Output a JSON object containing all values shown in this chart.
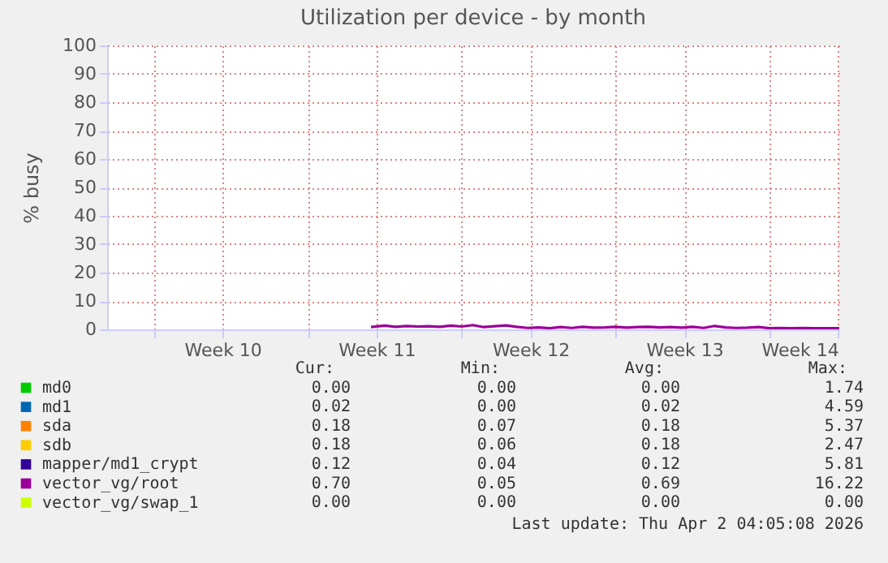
{
  "chart_data": {
    "type": "line",
    "title": "Utilization per device - by month",
    "ylabel": "% busy",
    "xlim": [
      "2026-02-27T21:00",
      "2026-04-02T04:05"
    ],
    "xticks": [
      {
        "value": "2026-03-02",
        "label": null
      },
      {
        "value": "2026-03-05T03:00",
        "label": "Week 10"
      },
      {
        "value": "2026-03-09",
        "label": null
      },
      {
        "value": "2026-03-12T03:00",
        "label": "Week 11"
      },
      {
        "value": "2026-03-16",
        "label": null
      },
      {
        "value": "2026-03-19T03:00",
        "label": "Week 12"
      },
      {
        "value": "2026-03-23",
        "label": null
      },
      {
        "value": "2026-03-26T03:00",
        "label": "Week 13"
      },
      {
        "value": "2026-03-30",
        "label": null
      },
      {
        "value": "2026-04-02T03:00",
        "label": "Week 14"
      }
    ],
    "ylim": [
      0,
      100
    ],
    "yticks": [
      0,
      10,
      20,
      30,
      40,
      50,
      60,
      70,
      80,
      90,
      100
    ],
    "grid": true,
    "legend": "bottom",
    "line_style": "solid",
    "series": [
      {
        "name": "md0",
        "color": "#00cc00"
      },
      {
        "name": "md1",
        "color": "#0066b3"
      },
      {
        "name": "sda",
        "color": "#ff8000"
      },
      {
        "name": "sdb",
        "color": "#ffcc00"
      },
      {
        "name": "mapper/md1_crypt",
        "color": "#330099"
      },
      {
        "name": "vector_vg/root",
        "color": "#990099",
        "x": [
          "2026-03-11T21:00",
          "2026-03-12T12:00",
          "2026-03-13",
          "2026-03-13T12:00",
          "2026-03-14",
          "2026-03-14T12:00",
          "2026-03-15",
          "2026-03-15T12:00",
          "2026-03-16",
          "2026-03-16T12:00",
          "2026-03-17",
          "2026-03-17T12:00",
          "2026-03-18",
          "2026-03-18T12:00",
          "2026-03-19",
          "2026-03-19T12:00",
          "2026-03-20",
          "2026-03-20T12:00",
          "2026-03-21",
          "2026-03-21T12:00",
          "2026-03-22",
          "2026-03-22T12:00",
          "2026-03-23",
          "2026-03-23T12:00",
          "2026-03-24",
          "2026-03-24T12:00",
          "2026-03-25",
          "2026-03-25T12:00",
          "2026-03-26",
          "2026-03-26T12:00",
          "2026-03-27",
          "2026-03-27T12:00",
          "2026-03-28",
          "2026-03-28T12:00",
          "2026-03-29",
          "2026-03-29T12:00",
          "2026-03-30",
          "2026-03-30T12:00",
          "2026-03-31",
          "2026-03-31T12:00",
          "2026-04-01",
          "2026-04-01T12:00",
          "2026-04-02T04:00"
        ],
        "values": [
          0.8,
          1.3,
          0.9,
          1.2,
          1.0,
          1.1,
          0.9,
          1.3,
          1.0,
          1.5,
          0.8,
          1.1,
          1.4,
          0.9,
          0.5,
          0.7,
          0.4,
          0.8,
          0.5,
          0.9,
          0.6,
          0.7,
          0.9,
          0.6,
          0.8,
          0.9,
          0.7,
          0.8,
          0.6,
          0.9,
          0.5,
          1.2,
          0.7,
          0.5,
          0.6,
          0.8,
          0.4,
          0.5,
          0.4,
          0.5,
          0.4,
          0.4,
          0.4
        ]
      },
      {
        "name": "vector_vg/swap_1",
        "color": "#ccff00"
      }
    ],
    "annotations": [
      "Cur:",
      "Min:",
      "Avg:",
      "Max:",
      "0.00",
      "0.00",
      "0.00",
      "1.74",
      "0.02",
      "0.00",
      "0.02",
      "4.59",
      "0.18",
      "0.07",
      "0.18",
      "5.37",
      "0.18",
      "0.06",
      "0.18",
      "2.47",
      "0.12",
      "0.04",
      "0.12",
      "5.81",
      "0.70",
      "0.05",
      "0.69",
      "16.22",
      "0.00",
      "0.00",
      "0.00",
      "0.00",
      "Last update: Thu Apr  2 04:05:08 2026"
    ]
  }
}
